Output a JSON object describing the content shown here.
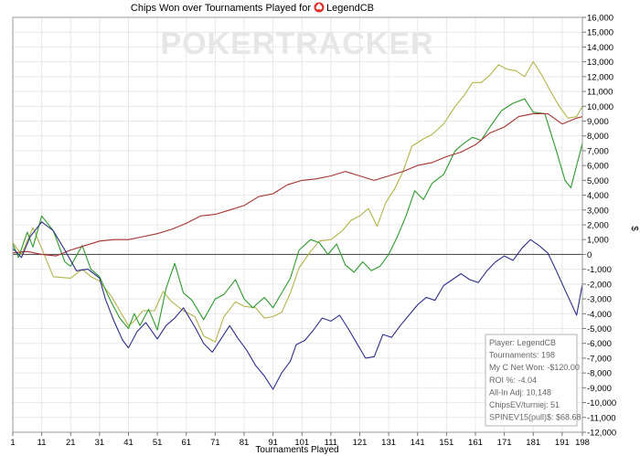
{
  "chart_data": {
    "type": "line",
    "title": "Chips Won over Tournaments Played for",
    "player_name": "LegendCB",
    "watermark": "POKERTRACKER",
    "xlabel": "Tournaments Played",
    "ylabel": "$",
    "xlim": [
      1,
      198
    ],
    "ylim": [
      -12000,
      16000
    ],
    "x_ticks": [
      1,
      11,
      21,
      31,
      41,
      51,
      61,
      71,
      81,
      91,
      101,
      111,
      121,
      131,
      141,
      151,
      161,
      171,
      181,
      191,
      198
    ],
    "y_ticks": [
      16000,
      15000,
      14000,
      13000,
      12000,
      11000,
      10000,
      9000,
      8000,
      7000,
      6000,
      5000,
      4000,
      3000,
      2000,
      1000,
      0,
      -1000,
      -2000,
      -3000,
      -4000,
      -5000,
      -6000,
      -7000,
      -8000,
      -9000,
      -10000,
      -11000,
      -12000
    ],
    "y_tick_labels": [
      "16,000",
      "15,000",
      "14,000",
      "13,000",
      "12,000",
      "11,000",
      "10,000",
      "9,000",
      "8,000",
      "7,000",
      "6,000",
      "5,000",
      "4,000",
      "3,000",
      "2,000",
      "1,000",
      "0",
      "-1,000",
      "-2,000",
      "-3,000",
      "-4,000",
      "-5,000",
      "-6,000",
      "-7,000",
      "-8,000",
      "-9,000",
      "-10,000",
      "-11,000",
      "-12,000"
    ],
    "grid": true,
    "series": [
      {
        "color": "#b3b34a",
        "points": [
          [
            1,
            800
          ],
          [
            4,
            0
          ],
          [
            8,
            1800
          ],
          [
            11,
            400
          ],
          [
            15,
            -1500
          ],
          [
            21,
            -1600
          ],
          [
            25,
            -1000
          ],
          [
            28,
            -1500
          ],
          [
            31,
            -1800
          ],
          [
            35,
            -2800
          ],
          [
            38,
            -3800
          ],
          [
            41,
            -4800
          ],
          [
            43,
            -4500
          ],
          [
            46,
            -3800
          ],
          [
            50,
            -3800
          ],
          [
            53,
            -2500
          ],
          [
            56,
            -3200
          ],
          [
            60,
            -3800
          ],
          [
            64,
            -4200
          ],
          [
            67,
            -5500
          ],
          [
            71,
            -5900
          ],
          [
            74,
            -4200
          ],
          [
            78,
            -3200
          ],
          [
            81,
            -3500
          ],
          [
            85,
            -3600
          ],
          [
            88,
            -4300
          ],
          [
            91,
            -4200
          ],
          [
            94,
            -3900
          ],
          [
            97,
            -2600
          ],
          [
            100,
            -900
          ],
          [
            104,
            200
          ],
          [
            107,
            900
          ],
          [
            111,
            1000
          ],
          [
            115,
            1600
          ],
          [
            118,
            2300
          ],
          [
            121,
            2600
          ],
          [
            124,
            3100
          ],
          [
            127,
            1900
          ],
          [
            130,
            3500
          ],
          [
            133,
            4400
          ],
          [
            136,
            5600
          ],
          [
            139,
            7300
          ],
          [
            143,
            7800
          ],
          [
            146,
            8100
          ],
          [
            150,
            8800
          ],
          [
            154,
            10000
          ],
          [
            157,
            10700
          ],
          [
            160,
            11600
          ],
          [
            163,
            11600
          ],
          [
            166,
            12100
          ],
          [
            169,
            12800
          ],
          [
            172,
            12500
          ],
          [
            175,
            12400
          ],
          [
            178,
            12000
          ],
          [
            181,
            13000
          ],
          [
            184,
            12100
          ],
          [
            187,
            11000
          ],
          [
            190,
            10000
          ],
          [
            193,
            9200
          ],
          [
            196,
            9300
          ],
          [
            198,
            10000
          ]
        ]
      },
      {
        "color": "#2d9a2d",
        "points": [
          [
            1,
            700
          ],
          [
            3,
            -200
          ],
          [
            6,
            1500
          ],
          [
            8,
            500
          ],
          [
            11,
            2600
          ],
          [
            15,
            1600
          ],
          [
            19,
            -500
          ],
          [
            21,
            -800
          ],
          [
            25,
            600
          ],
          [
            28,
            -1000
          ],
          [
            31,
            -1500
          ],
          [
            35,
            -3200
          ],
          [
            38,
            -4300
          ],
          [
            41,
            -5000
          ],
          [
            43,
            -4000
          ],
          [
            45,
            -4800
          ],
          [
            48,
            -3700
          ],
          [
            51,
            -5100
          ],
          [
            54,
            -2300
          ],
          [
            57,
            -600
          ],
          [
            60,
            -2600
          ],
          [
            63,
            -3100
          ],
          [
            67,
            -4400
          ],
          [
            71,
            -3000
          ],
          [
            74,
            -2700
          ],
          [
            78,
            -1700
          ],
          [
            81,
            -3000
          ],
          [
            84,
            -3600
          ],
          [
            88,
            -2900
          ],
          [
            91,
            -3600
          ],
          [
            94,
            -2600
          ],
          [
            97,
            -1600
          ],
          [
            100,
            300
          ],
          [
            104,
            1000
          ],
          [
            107,
            800
          ],
          [
            110,
            0
          ],
          [
            113,
            700
          ],
          [
            116,
            -700
          ],
          [
            119,
            -1200
          ],
          [
            122,
            -500
          ],
          [
            125,
            -1100
          ],
          [
            128,
            -800
          ],
          [
            131,
            0
          ],
          [
            134,
            1200
          ],
          [
            137,
            2600
          ],
          [
            140,
            4300
          ],
          [
            143,
            3700
          ],
          [
            146,
            4800
          ],
          [
            150,
            5400
          ],
          [
            154,
            7000
          ],
          [
            157,
            7500
          ],
          [
            160,
            7900
          ],
          [
            163,
            7700
          ],
          [
            166,
            8600
          ],
          [
            170,
            9700
          ],
          [
            174,
            10200
          ],
          [
            178,
            10500
          ],
          [
            181,
            9600
          ],
          [
            185,
            9500
          ],
          [
            189,
            7000
          ],
          [
            192,
            5000
          ],
          [
            194,
            4500
          ],
          [
            196,
            6000
          ],
          [
            198,
            7500
          ]
        ]
      },
      {
        "color": "#a83232",
        "points": [
          [
            1,
            100
          ],
          [
            6,
            200
          ],
          [
            11,
            0
          ],
          [
            16,
            -100
          ],
          [
            21,
            300
          ],
          [
            26,
            600
          ],
          [
            31,
            900
          ],
          [
            36,
            1000
          ],
          [
            41,
            1000
          ],
          [
            46,
            1200
          ],
          [
            51,
            1400
          ],
          [
            56,
            1700
          ],
          [
            61,
            2100
          ],
          [
            66,
            2600
          ],
          [
            71,
            2700
          ],
          [
            76,
            3000
          ],
          [
            81,
            3300
          ],
          [
            86,
            3900
          ],
          [
            91,
            4100
          ],
          [
            96,
            4700
          ],
          [
            101,
            5000
          ],
          [
            106,
            5100
          ],
          [
            111,
            5300
          ],
          [
            116,
            5600
          ],
          [
            121,
            5300
          ],
          [
            126,
            5000
          ],
          [
            131,
            5300
          ],
          [
            136,
            5600
          ],
          [
            141,
            6000
          ],
          [
            146,
            6200
          ],
          [
            151,
            6600
          ],
          [
            156,
            6900
          ],
          [
            161,
            7400
          ],
          [
            166,
            8200
          ],
          [
            171,
            8600
          ],
          [
            176,
            9300
          ],
          [
            181,
            9500
          ],
          [
            186,
            9500
          ],
          [
            191,
            8800
          ],
          [
            196,
            9200
          ],
          [
            198,
            9300
          ]
        ]
      },
      {
        "color": "#2e2e8c",
        "points": [
          [
            1,
            400
          ],
          [
            4,
            -200
          ],
          [
            7,
            1200
          ],
          [
            11,
            2200
          ],
          [
            15,
            1600
          ],
          [
            19,
            300
          ],
          [
            23,
            -1100
          ],
          [
            27,
            -1000
          ],
          [
            31,
            -1600
          ],
          [
            33,
            -3000
          ],
          [
            36,
            -4500
          ],
          [
            39,
            -5800
          ],
          [
            41,
            -6300
          ],
          [
            44,
            -5200
          ],
          [
            47,
            -4600
          ],
          [
            51,
            -5700
          ],
          [
            54,
            -4800
          ],
          [
            57,
            -4300
          ],
          [
            60,
            -3600
          ],
          [
            64,
            -4900
          ],
          [
            67,
            -6000
          ],
          [
            70,
            -6600
          ],
          [
            73,
            -5700
          ],
          [
            76,
            -4800
          ],
          [
            79,
            -5700
          ],
          [
            82,
            -6500
          ],
          [
            85,
            -7500
          ],
          [
            88,
            -8200
          ],
          [
            91,
            -9100
          ],
          [
            94,
            -8000
          ],
          [
            97,
            -7200
          ],
          [
            99,
            -6100
          ],
          [
            102,
            -5800
          ],
          [
            105,
            -5100
          ],
          [
            108,
            -4300
          ],
          [
            111,
            -4500
          ],
          [
            114,
            -4100
          ],
          [
            117,
            -5000
          ],
          [
            120,
            -6000
          ],
          [
            123,
            -7000
          ],
          [
            126,
            -6900
          ],
          [
            129,
            -5400
          ],
          [
            132,
            -5600
          ],
          [
            135,
            -4800
          ],
          [
            138,
            -4100
          ],
          [
            141,
            -3400
          ],
          [
            144,
            -2900
          ],
          [
            147,
            -3100
          ],
          [
            150,
            -2100
          ],
          [
            153,
            -1700
          ],
          [
            156,
            -1300
          ],
          [
            159,
            -1700
          ],
          [
            162,
            -1900
          ],
          [
            165,
            -1100
          ],
          [
            168,
            -500
          ],
          [
            171,
            -100
          ],
          [
            174,
            -400
          ],
          [
            177,
            400
          ],
          [
            180,
            1000
          ],
          [
            183,
            600
          ],
          [
            186,
            100
          ],
          [
            189,
            -1100
          ],
          [
            192,
            -2400
          ],
          [
            196,
            -4100
          ],
          [
            198,
            -2000
          ]
        ]
      }
    ],
    "stats": [
      "Player: LegendCB",
      "Tournaments: 198",
      "My C Net Won: -$120.00",
      "ROI %: -4.04",
      "All-In Adj: 10,148",
      "ChipsEV/turniej: 51",
      "SPINEV15(pull)$: $68.68"
    ]
  }
}
